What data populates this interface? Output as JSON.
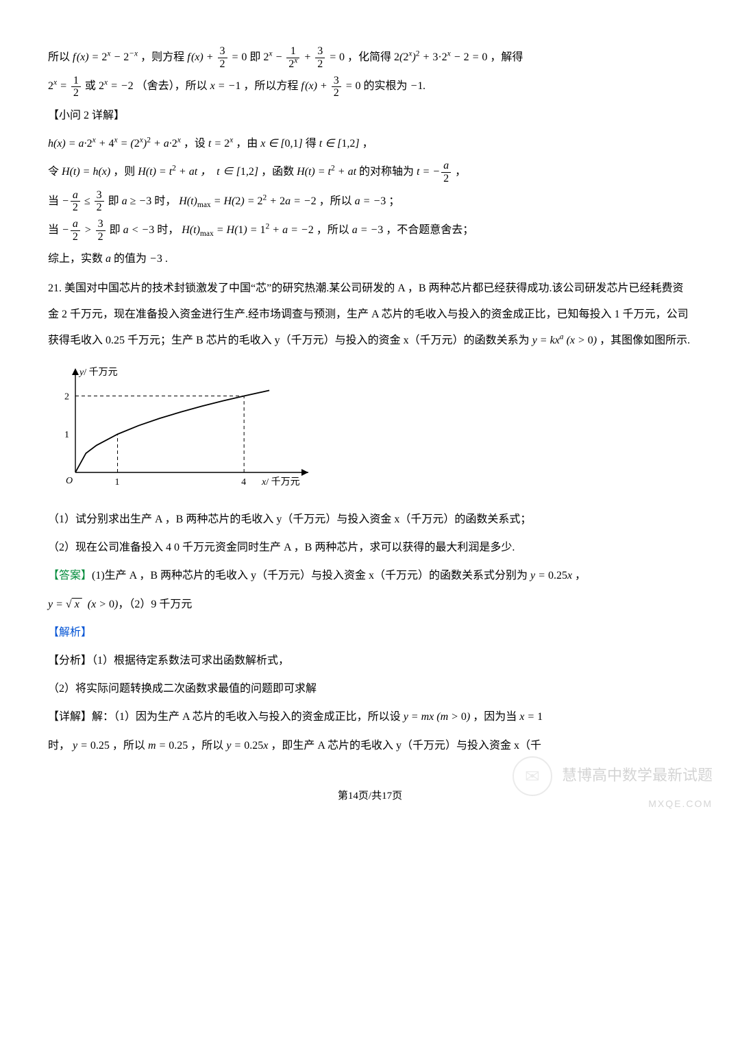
{
  "p1a": "所以 ",
  "p1b": "，则方程 ",
  "p1c": " 即 ",
  "p1d": "，化简得 ",
  "p1e": "，解得",
  "p2a": " 或 ",
  "p2b": "（舍去），所以 ",
  "p2c": "，所以方程 ",
  "p2d": " 的实根为 ",
  "p3": "【小问 2 详解】",
  "p4a": "，设 ",
  "p4b": "，由 ",
  "p4c": " 得 ",
  "p5a": "令 ",
  "p5b": "，则 ",
  "p5c": "，函数 ",
  "p5d": " 的对称轴为 ",
  "p6a": "当 ",
  "p6b": " 即 ",
  "p6c": " 时，",
  "p6d": "，所以 ",
  "p7a": "当 ",
  "p7b": " 即 ",
  "p7c": " 时，",
  "p7d": "，所以 ",
  "p7e": "，不合题意舍去；",
  "p8": "综上，实数 a 的值为 −3 .",
  "q21": "21.  美国对中国芯片的技术封锁激发了中国“芯”的研究热潮.某公司研发的 A ，B 两种芯片都已经获得成功.该公司研发芯片已经耗费资金 2 千万元，现在准备投入资金进行生产.经市场调查与预测，生产 A 芯片的毛收入与投入的资金成正比，已知每投入 1 千万元，公司获得毛收入 0.25 千万元；生产 B 芯片的毛收入 y（千万元）与投入的资金 x（千万元）的函数关系为 ",
  "q21b": "，其图像如图所示.",
  "chart": {
    "type": "line",
    "x_label": "x/ 千万元",
    "y_label": "y/ 千万元",
    "x_ticks": [
      0,
      1,
      4
    ],
    "y_ticks": [
      1,
      2
    ],
    "xlim": [
      0,
      5.2
    ],
    "ylim": [
      0,
      2.6
    ],
    "curve_points": [
      [
        0,
        0
      ],
      [
        0.25,
        0.5
      ],
      [
        0.5,
        0.707
      ],
      [
        1,
        1
      ],
      [
        1.5,
        1.225
      ],
      [
        2,
        1.414
      ],
      [
        2.5,
        1.581
      ],
      [
        3,
        1.732
      ],
      [
        3.5,
        1.871
      ],
      [
        4,
        2
      ],
      [
        4.6,
        2.145
      ]
    ],
    "guide_h": {
      "y": 2,
      "x_to": 4
    },
    "guide_v1": {
      "x": 1,
      "y_to": 1
    },
    "guide_v2": {
      "x": 4,
      "y_to": 2
    },
    "axis_color": "#000000",
    "curve_color": "#000000",
    "guide_color": "#000000",
    "background": "#ffffff",
    "label_fontsize": 14
  },
  "sub1": "（1）试分别求出生产 A ，B 两种芯片的毛收入 y（千万元）与投入资金 x（千万元）的函数关系式；",
  "sub2": "（2）现在公司准备投入 4 0 千万元资金同时生产 A ，B 两种芯片，求可以获得的最大利润是多少.",
  "ans_label": "【答案】",
  "ans_text_a": "(1)生产 A ，B 两种芯片的毛收入 y（千万元）与投入资金 x（千万元）的函数关系式分别为 ",
  "ans_text_b": "，（2）9 千万元",
  "jiexi": "【解析】",
  "fenxi": "【分析】（1）根据待定系数法可求出函数解析式，",
  "fenxi2": "（2）将实际问题转换成二次函数求最值的问题即可求解",
  "det_a": "【详解】解：（1）因为生产 A 芯片的毛收入与投入的资金成正比，所以设 ",
  "det_b": "，因为当 ",
  "det_c": "时，",
  "det_d": "，所以 ",
  "det_e": "，所以 ",
  "det_f": "，即生产 A 芯片的毛收入 y（千万元）与投入资金 x（千",
  "eq_fx": "f ( x ) = 2",
  "page_footer": "第14页/共17页",
  "watermark_text": "慧博高中数学最新试题",
  "watermark_sub": "MXQE.COM"
}
